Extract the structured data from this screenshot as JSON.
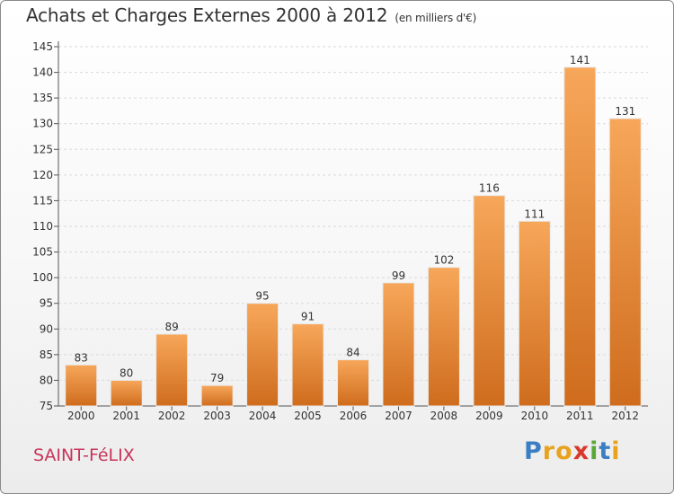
{
  "header": {
    "title": "Achats et Charges Externes 2000 à 2012",
    "subtitle": "(en milliers d'€)"
  },
  "footer": {
    "city": "SAINT-FéLIX",
    "logo_letters": [
      {
        "char": "P",
        "color": "#3a7fc4"
      },
      {
        "char": "r",
        "color": "#e8a21e"
      },
      {
        "char": "o",
        "color": "#e8a21e"
      },
      {
        "char": "x",
        "color": "#d8392b"
      },
      {
        "char": "i",
        "color": "#5aa83a"
      },
      {
        "char": "t",
        "color": "#3a7fc4"
      },
      {
        "char": "i",
        "color": "#e8a21e"
      }
    ]
  },
  "chart_data": {
    "type": "bar",
    "title": "Achats et Charges Externes 2000 à 2012",
    "subtitle": "(en milliers d'€)",
    "xlabel": "",
    "ylabel": "",
    "categories": [
      "2000",
      "2001",
      "2002",
      "2003",
      "2004",
      "2005",
      "2006",
      "2007",
      "2008",
      "2009",
      "2010",
      "2011",
      "2012"
    ],
    "values": [
      83,
      80,
      89,
      79,
      95,
      91,
      84,
      99,
      102,
      116,
      111,
      141,
      131
    ],
    "ylim": [
      75,
      145
    ],
    "yticks": [
      75,
      80,
      85,
      90,
      95,
      100,
      105,
      110,
      115,
      120,
      125,
      130,
      135,
      140,
      145
    ],
    "grid": true,
    "legend": "none",
    "bar_color_top": "#f7a75a",
    "bar_color_bottom": "#cf6c1d"
  }
}
